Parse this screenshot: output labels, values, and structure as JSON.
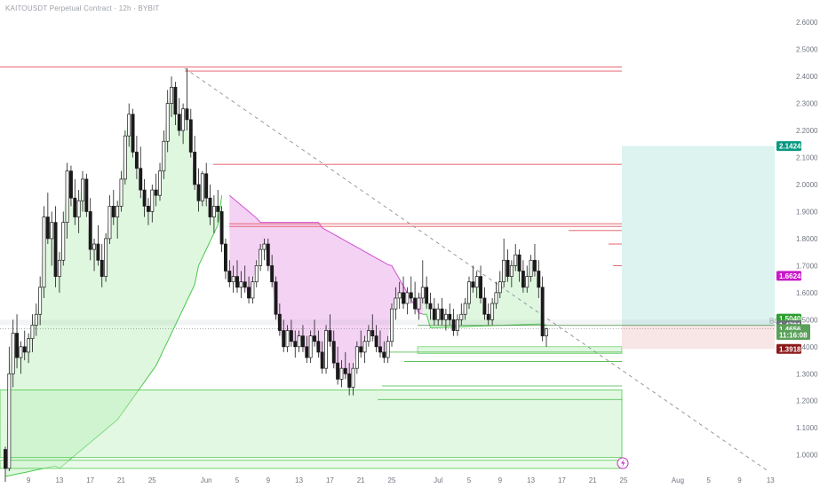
{
  "header": {
    "title": "KAITOUSDT Perpetual Contract · 12h · BYBIT"
  },
  "chart_data": {
    "type": "candlestick",
    "title": "KAITOUSDT Perpetual Contract · 12h · BYBIT",
    "y_axis": {
      "range": [
        0.93,
        2.64
      ],
      "ticks": [
        1.0,
        1.1,
        1.2,
        1.3,
        1.4,
        1.5,
        1.6,
        1.7,
        1.8,
        1.9,
        2.0,
        2.1,
        2.2,
        2.3,
        2.4,
        2.5,
        2.6
      ]
    },
    "x_axis": {
      "ticks": [
        {
          "label": "9",
          "i": 6
        },
        {
          "label": "13",
          "i": 14
        },
        {
          "label": "17",
          "i": 22
        },
        {
          "label": "21",
          "i": 30
        },
        {
          "label": "25",
          "i": 38
        },
        {
          "label": "Jun",
          "i": 52
        },
        {
          "label": "5",
          "i": 60
        },
        {
          "label": "9",
          "i": 68
        },
        {
          "label": "13",
          "i": 76
        },
        {
          "label": "17",
          "i": 84
        },
        {
          "label": "21",
          "i": 92
        },
        {
          "label": "25",
          "i": 100
        },
        {
          "label": "Jul",
          "i": 112
        },
        {
          "label": "5",
          "i": 120
        },
        {
          "label": "9",
          "i": 128
        },
        {
          "label": "13",
          "i": 136
        },
        {
          "label": "17",
          "i": 144
        },
        {
          "label": "21",
          "i": 152
        },
        {
          "label": "25",
          "i": 160
        },
        {
          "label": "Aug",
          "i": 174
        },
        {
          "label": "5",
          "i": 182
        },
        {
          "label": "9",
          "i": 190
        },
        {
          "label": "13",
          "i": 198
        }
      ]
    },
    "price_labels": [
      {
        "value": "2.1424",
        "price": 2.1424,
        "color": "#089981"
      },
      {
        "value": "1.6624",
        "price": 1.6624,
        "color": "#c819c8"
      },
      {
        "value": "1.5040",
        "price": 1.504,
        "color": "#2e9e2e"
      },
      {
        "value": "1.4796",
        "price": 1.4796,
        "color": "#2e9e2e"
      },
      {
        "value": "1.4791",
        "price": 1.4791,
        "color": "#6b7079"
      },
      {
        "value": "1.4656",
        "price": 1.4656,
        "color": "#5aa05a"
      },
      {
        "value": "11:16:08",
        "price": 1.4436,
        "color": "#5aa05a"
      },
      {
        "value": "1.3918",
        "price": 1.3918,
        "color": "#8b1a1a"
      }
    ],
    "annotations": [
      {
        "text": "BOS",
        "price": 1.483
      }
    ],
    "resistance_lines": [
      2.435,
      2.42,
      2.075,
      1.855,
      1.845,
      1.83,
      1.78,
      1.7
    ],
    "support_lines": [
      1.38,
      1.34,
      1.25,
      1.205,
      0.98
    ],
    "trendline": {
      "from": {
        "i": 47,
        "price": 2.43
      },
      "to": {
        "i": 196,
        "price": 0.93
      }
    },
    "position_box": {
      "entry": 1.4791,
      "target": 2.1424,
      "stop": 1.3918,
      "from_i": 160,
      "to_i": 198
    },
    "candles": [
      [
        1.02,
        1.03,
        0.9,
        0.95
      ],
      [
        0.95,
        1.4,
        0.94,
        1.3
      ],
      [
        1.3,
        1.5,
        1.25,
        1.45
      ],
      [
        1.45,
        1.52,
        1.32,
        1.36
      ],
      [
        1.36,
        1.42,
        1.3,
        1.4
      ],
      [
        1.4,
        1.46,
        1.35,
        1.38
      ],
      [
        1.38,
        1.45,
        1.34,
        1.43
      ],
      [
        1.43,
        1.52,
        1.38,
        1.48
      ],
      [
        1.48,
        1.56,
        1.44,
        1.52
      ],
      [
        1.52,
        1.66,
        1.48,
        1.62
      ],
      [
        1.62,
        1.92,
        1.58,
        1.88
      ],
      [
        1.88,
        1.97,
        1.78,
        1.8
      ],
      [
        1.8,
        1.9,
        1.7,
        1.86
      ],
      [
        1.86,
        1.92,
        1.62,
        1.66
      ],
      [
        1.66,
        1.75,
        1.6,
        1.72
      ],
      [
        1.72,
        1.9,
        1.7,
        1.86
      ],
      [
        1.86,
        2.08,
        1.8,
        2.05
      ],
      [
        2.05,
        2.07,
        1.92,
        1.95
      ],
      [
        1.95,
        2.02,
        1.85,
        1.88
      ],
      [
        1.88,
        1.98,
        1.82,
        1.94
      ],
      [
        1.94,
        2.05,
        1.9,
        2.02
      ],
      [
        2.02,
        2.04,
        1.88,
        1.9
      ],
      [
        1.9,
        1.95,
        1.72,
        1.76
      ],
      [
        1.76,
        1.8,
        1.68,
        1.78
      ],
      [
        1.78,
        1.85,
        1.7,
        1.72
      ],
      [
        1.72,
        1.78,
        1.62,
        1.66
      ],
      [
        1.66,
        1.82,
        1.64,
        1.8
      ],
      [
        1.8,
        1.96,
        1.78,
        1.92
      ],
      [
        1.92,
        1.98,
        1.85,
        1.88
      ],
      [
        1.88,
        1.94,
        1.8,
        1.92
      ],
      [
        1.92,
        2.05,
        1.9,
        2.02
      ],
      [
        2.02,
        2.2,
        2.0,
        2.18
      ],
      [
        2.18,
        2.3,
        2.14,
        2.26
      ],
      [
        2.26,
        2.28,
        2.1,
        2.12
      ],
      [
        2.12,
        2.18,
        2.02,
        2.06
      ],
      [
        2.06,
        2.14,
        1.95,
        1.98
      ],
      [
        1.98,
        2.02,
        1.88,
        1.92
      ],
      [
        1.92,
        1.95,
        1.85,
        1.9
      ],
      [
        1.9,
        2.0,
        1.86,
        1.98
      ],
      [
        1.98,
        2.04,
        1.92,
        1.96
      ],
      [
        1.96,
        2.08,
        1.94,
        2.05
      ],
      [
        2.05,
        2.2,
        2.02,
        2.16
      ],
      [
        2.16,
        2.35,
        2.12,
        2.3
      ],
      [
        2.3,
        2.4,
        2.25,
        2.36
      ],
      [
        2.36,
        2.38,
        2.22,
        2.26
      ],
      [
        2.26,
        2.32,
        2.18,
        2.2
      ],
      [
        2.2,
        2.3,
        2.15,
        2.28
      ],
      [
        2.28,
        2.43,
        2.2,
        2.24
      ],
      [
        2.24,
        2.28,
        2.1,
        2.12
      ],
      [
        2.12,
        2.18,
        1.98,
        2.0
      ],
      [
        2.0,
        2.06,
        1.9,
        1.94
      ],
      [
        1.94,
        2.05,
        1.92,
        2.04
      ],
      [
        2.04,
        2.08,
        1.92,
        1.95
      ],
      [
        1.95,
        2.0,
        1.85,
        1.88
      ],
      [
        1.88,
        1.96,
        1.82,
        1.92
      ],
      [
        1.92,
        1.98,
        1.86,
        1.9
      ],
      [
        1.9,
        1.92,
        1.75,
        1.78
      ],
      [
        1.78,
        1.8,
        1.65,
        1.68
      ],
      [
        1.68,
        1.72,
        1.62,
        1.64
      ],
      [
        1.64,
        1.7,
        1.6,
        1.66
      ],
      [
        1.66,
        1.72,
        1.6,
        1.62
      ],
      [
        1.62,
        1.68,
        1.58,
        1.64
      ],
      [
        1.64,
        1.7,
        1.6,
        1.62
      ],
      [
        1.62,
        1.66,
        1.56,
        1.58
      ],
      [
        1.58,
        1.66,
        1.56,
        1.64
      ],
      [
        1.64,
        1.72,
        1.62,
        1.7
      ],
      [
        1.7,
        1.78,
        1.68,
        1.76
      ],
      [
        1.76,
        1.8,
        1.72,
        1.78
      ],
      [
        1.78,
        1.8,
        1.68,
        1.7
      ],
      [
        1.7,
        1.74,
        1.62,
        1.64
      ],
      [
        1.64,
        1.66,
        1.5,
        1.52
      ],
      [
        1.52,
        1.56,
        1.44,
        1.46
      ],
      [
        1.46,
        1.5,
        1.38,
        1.4
      ],
      [
        1.4,
        1.48,
        1.38,
        1.46
      ],
      [
        1.46,
        1.5,
        1.4,
        1.42
      ],
      [
        1.42,
        1.46,
        1.36,
        1.4
      ],
      [
        1.4,
        1.46,
        1.38,
        1.44
      ],
      [
        1.44,
        1.48,
        1.38,
        1.4
      ],
      [
        1.4,
        1.44,
        1.34,
        1.36
      ],
      [
        1.36,
        1.46,
        1.34,
        1.44
      ],
      [
        1.44,
        1.5,
        1.4,
        1.42
      ],
      [
        1.42,
        1.46,
        1.36,
        1.38
      ],
      [
        1.38,
        1.42,
        1.3,
        1.32
      ],
      [
        1.32,
        1.48,
        1.3,
        1.46
      ],
      [
        1.46,
        1.52,
        1.4,
        1.42
      ],
      [
        1.42,
        1.46,
        1.32,
        1.34
      ],
      [
        1.34,
        1.4,
        1.26,
        1.28
      ],
      [
        1.28,
        1.35,
        1.25,
        1.32
      ],
      [
        1.32,
        1.38,
        1.28,
        1.3
      ],
      [
        1.3,
        1.34,
        1.22,
        1.25
      ],
      [
        1.25,
        1.34,
        1.22,
        1.32
      ],
      [
        1.32,
        1.42,
        1.3,
        1.4
      ],
      [
        1.4,
        1.46,
        1.36,
        1.38
      ],
      [
        1.38,
        1.44,
        1.34,
        1.42
      ],
      [
        1.42,
        1.48,
        1.4,
        1.46
      ],
      [
        1.46,
        1.52,
        1.42,
        1.44
      ],
      [
        1.44,
        1.48,
        1.38,
        1.4
      ],
      [
        1.4,
        1.46,
        1.36,
        1.38
      ],
      [
        1.38,
        1.42,
        1.34,
        1.36
      ],
      [
        1.36,
        1.44,
        1.34,
        1.42
      ],
      [
        1.42,
        1.56,
        1.4,
        1.54
      ],
      [
        1.54,
        1.62,
        1.5,
        1.58
      ],
      [
        1.58,
        1.64,
        1.54,
        1.6
      ],
      [
        1.6,
        1.66,
        1.54,
        1.56
      ],
      [
        1.56,
        1.62,
        1.52,
        1.6
      ],
      [
        1.6,
        1.66,
        1.56,
        1.58
      ],
      [
        1.58,
        1.64,
        1.52,
        1.54
      ],
      [
        1.54,
        1.6,
        1.5,
        1.58
      ],
      [
        1.58,
        1.72,
        1.56,
        1.62
      ],
      [
        1.62,
        1.66,
        1.54,
        1.56
      ],
      [
        1.56,
        1.6,
        1.5,
        1.54
      ],
      [
        1.54,
        1.58,
        1.48,
        1.5
      ],
      [
        1.5,
        1.56,
        1.48,
        1.54
      ],
      [
        1.54,
        1.58,
        1.48,
        1.5
      ],
      [
        1.5,
        1.54,
        1.46,
        1.52
      ],
      [
        1.52,
        1.56,
        1.48,
        1.5
      ],
      [
        1.5,
        1.54,
        1.44,
        1.46
      ],
      [
        1.46,
        1.52,
        1.44,
        1.5
      ],
      [
        1.5,
        1.56,
        1.48,
        1.52
      ],
      [
        1.52,
        1.58,
        1.5,
        1.56
      ],
      [
        1.56,
        1.66,
        1.54,
        1.64
      ],
      [
        1.64,
        1.7,
        1.6,
        1.62
      ],
      [
        1.62,
        1.68,
        1.58,
        1.66
      ],
      [
        1.66,
        1.7,
        1.56,
        1.58
      ],
      [
        1.58,
        1.62,
        1.5,
        1.52
      ],
      [
        1.52,
        1.56,
        1.48,
        1.5
      ],
      [
        1.5,
        1.58,
        1.48,
        1.56
      ],
      [
        1.56,
        1.64,
        1.54,
        1.6
      ],
      [
        1.6,
        1.68,
        1.58,
        1.64
      ],
      [
        1.64,
        1.8,
        1.62,
        1.72
      ],
      [
        1.72,
        1.76,
        1.64,
        1.66
      ],
      [
        1.66,
        1.72,
        1.62,
        1.7
      ],
      [
        1.7,
        1.78,
        1.68,
        1.74
      ],
      [
        1.74,
        1.76,
        1.64,
        1.68
      ],
      [
        1.68,
        1.72,
        1.6,
        1.62
      ],
      [
        1.62,
        1.7,
        1.6,
        1.66
      ],
      [
        1.66,
        1.74,
        1.64,
        1.72
      ],
      [
        1.72,
        1.78,
        1.66,
        1.68
      ],
      [
        1.68,
        1.72,
        1.58,
        1.62
      ],
      [
        1.62,
        1.66,
        1.42,
        1.44
      ],
      [
        1.44,
        1.47,
        1.4,
        1.466
      ]
    ]
  }
}
